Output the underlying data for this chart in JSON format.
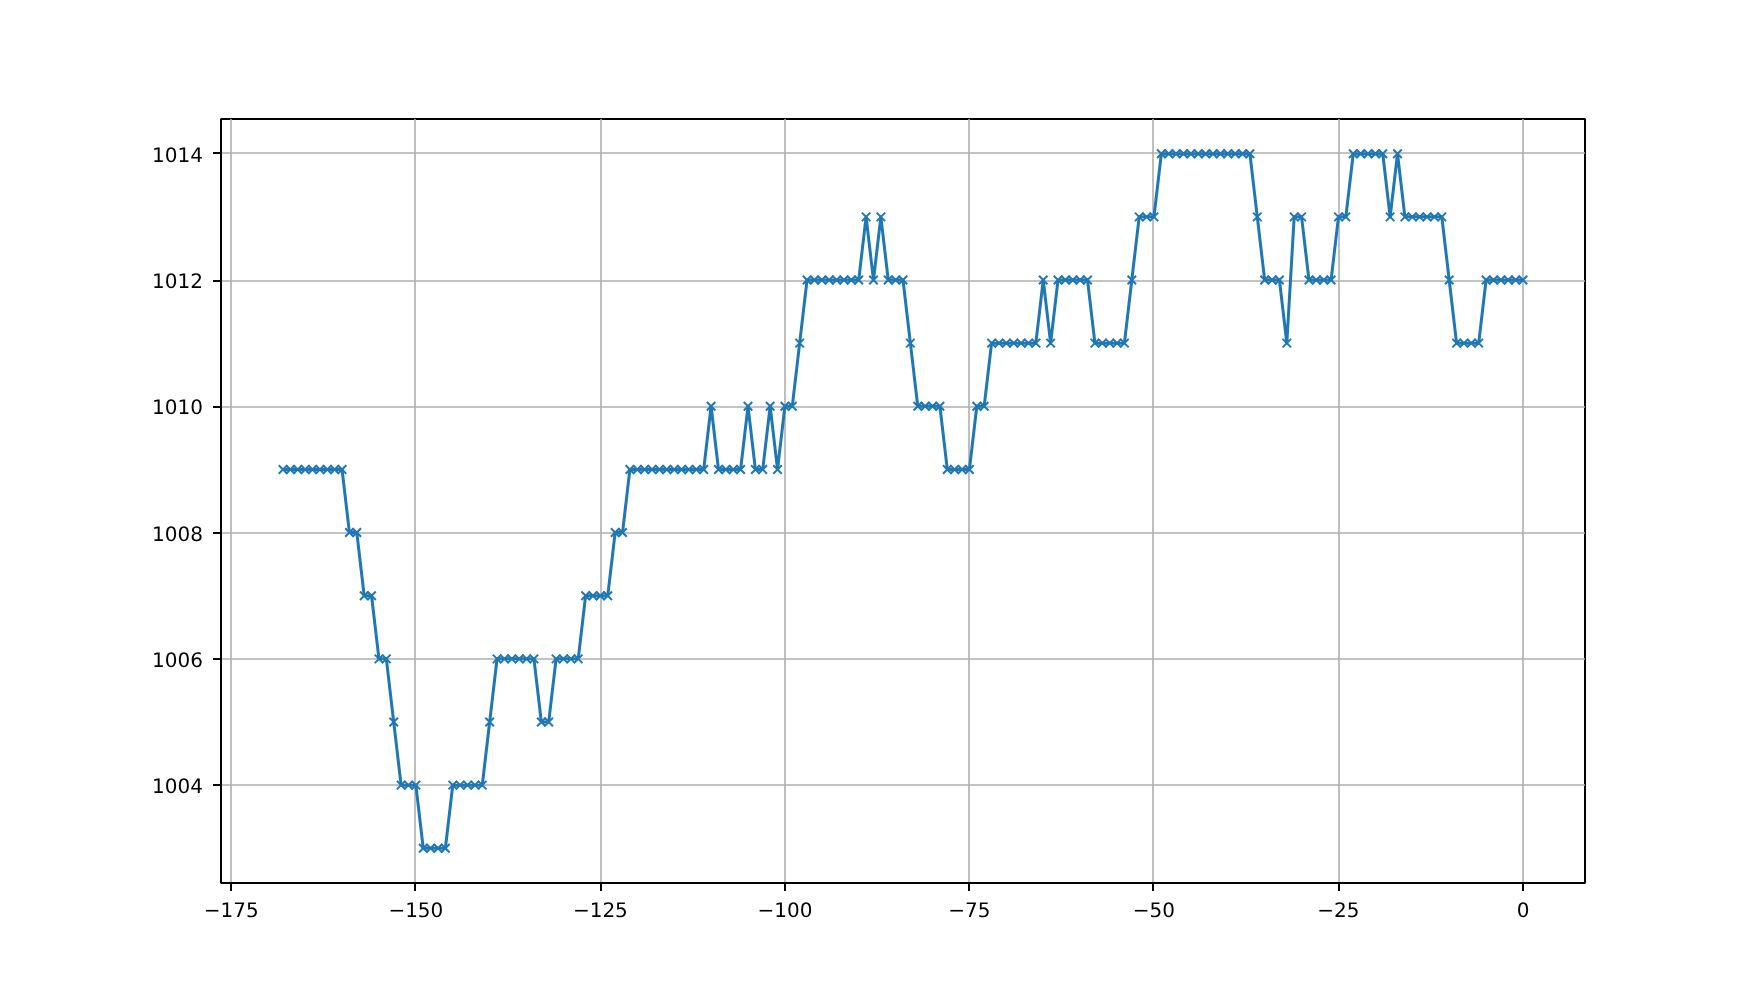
{
  "chart_data": {
    "type": "line",
    "marker": "cross",
    "grid": true,
    "xlim": [
      -176.4,
      8.4
    ],
    "ylim": [
      1002.45,
      1014.55
    ],
    "xticks": [
      {
        "value": -175,
        "label": "−175"
      },
      {
        "value": -150,
        "label": "−150"
      },
      {
        "value": -125,
        "label": "−125"
      },
      {
        "value": -100,
        "label": "−100"
      },
      {
        "value": -75,
        "label": "−75"
      },
      {
        "value": -50,
        "label": "−50"
      },
      {
        "value": -25,
        "label": "−25"
      },
      0
    ],
    "yticks": [
      1004,
      1006,
      1008,
      1010,
      1012,
      1014
    ],
    "x": [
      -168,
      -167,
      -166,
      -165,
      -164,
      -163,
      -162,
      -161,
      -160,
      -159,
      -158,
      -157,
      -156,
      -155,
      -154,
      -153,
      -152,
      -151,
      -150,
      -149,
      -148,
      -147,
      -146,
      -145,
      -144,
      -143,
      -142,
      -141,
      -140,
      -139,
      -138,
      -137,
      -136,
      -135,
      -134,
      -133,
      -132,
      -131,
      -130,
      -129,
      -128,
      -127,
      -126,
      -125,
      -124,
      -123,
      -122,
      -121,
      -120,
      -119,
      -118,
      -117,
      -116,
      -115,
      -114,
      -113,
      -112,
      -111,
      -110,
      -109,
      -108,
      -107,
      -106,
      -105,
      -104,
      -103,
      -102,
      -101,
      -100,
      -99,
      -98,
      -97,
      -96,
      -95,
      -94,
      -93,
      -92,
      -91,
      -90,
      -89,
      -88,
      -87,
      -86,
      -85,
      -84,
      -83,
      -82,
      -81,
      -80,
      -79,
      -78,
      -77,
      -76,
      -75,
      -74,
      -73,
      -72,
      -71,
      -70,
      -69,
      -68,
      -67,
      -66,
      -65,
      -64,
      -63,
      -62,
      -61,
      -60,
      -59,
      -58,
      -57,
      -56,
      -55,
      -54,
      -53,
      -52,
      -51,
      -50,
      -49,
      -48,
      -47,
      -46,
      -45,
      -44,
      -43,
      -42,
      -41,
      -40,
      -39,
      -38,
      -37,
      -36,
      -35,
      -34,
      -33,
      -32,
      -31,
      -30,
      -29,
      -28,
      -27,
      -26,
      -25,
      -24,
      -23,
      -22,
      -21,
      -20,
      -19,
      -18,
      -17,
      -16,
      -15,
      -14,
      -13,
      -12,
      -11,
      -10,
      -9,
      -8,
      -7,
      -6,
      -5,
      -4,
      -3,
      -2,
      -1,
      0
    ],
    "series": [
      {
        "color": "#1f77b4",
        "values": [
          1009,
          1009,
          1009,
          1009,
          1009,
          1009,
          1009,
          1009,
          1009,
          1008,
          1008,
          1007,
          1007,
          1006,
          1006,
          1005,
          1004,
          1004,
          1004,
          1003,
          1003,
          1003,
          1003,
          1004,
          1004,
          1004,
          1004,
          1004,
          1005,
          1006,
          1006,
          1006,
          1006,
          1006,
          1006,
          1005,
          1005,
          1006,
          1006,
          1006,
          1006,
          1007,
          1007,
          1007,
          1007,
          1008,
          1008,
          1009,
          1009,
          1009,
          1009,
          1009,
          1009,
          1009,
          1009,
          1009,
          1009,
          1009,
          1010,
          1009,
          1009,
          1009,
          1009,
          1010,
          1009,
          1009,
          1010,
          1009,
          1010,
          1010,
          1011,
          1012,
          1012,
          1012,
          1012,
          1012,
          1012,
          1012,
          1012,
          1013,
          1012,
          1013,
          1012,
          1012,
          1012,
          1011,
          1010,
          1010,
          1010,
          1010,
          1009,
          1009,
          1009,
          1009,
          1010,
          1010,
          1011,
          1011,
          1011,
          1011,
          1011,
          1011,
          1011,
          1012,
          1011,
          1012,
          1012,
          1012,
          1012,
          1012,
          1011,
          1011,
          1011,
          1011,
          1011,
          1012,
          1013,
          1013,
          1013,
          1014,
          1014,
          1014,
          1014,
          1014,
          1014,
          1014,
          1014,
          1014,
          1014,
          1014,
          1014,
          1014,
          1013,
          1012,
          1012,
          1012,
          1011,
          1013,
          1013,
          1012,
          1012,
          1012,
          1012,
          1013,
          1013,
          1014,
          1014,
          1014,
          1014,
          1014,
          1013,
          1014,
          1013,
          1013,
          1013,
          1013,
          1013,
          1013,
          1012,
          1011,
          1011,
          1011,
          1011,
          1012,
          1012,
          1012,
          1012,
          1012,
          1012
        ]
      }
    ]
  }
}
